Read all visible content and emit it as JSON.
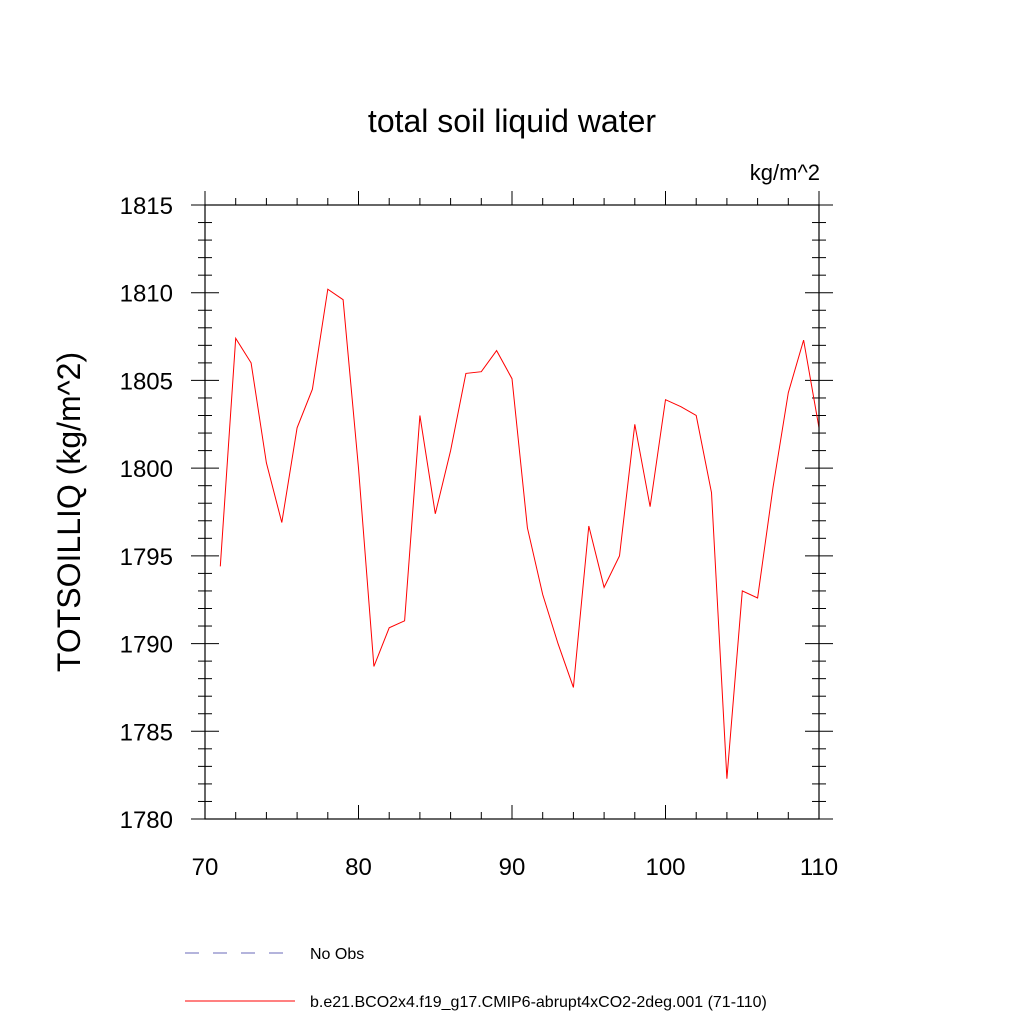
{
  "chart_data": {
    "type": "line",
    "title": "total soil liquid water",
    "units_label": "kg/m^2",
    "xlabel": "",
    "ylabel": "TOTSOILLIQ  (kg/m^2)",
    "xlim": [
      70,
      110
    ],
    "ylim": [
      1780,
      1815
    ],
    "xticks": [
      70,
      80,
      90,
      100,
      110
    ],
    "yticks": [
      1780,
      1785,
      1790,
      1795,
      1800,
      1805,
      1810,
      1815
    ],
    "grid": false,
    "series": [
      {
        "name": "b.e21.BCO2x4.f19_g17.CMIP6-abrupt4xCO2-2deg.001 (71-110)",
        "color": "#ff0000",
        "dash": "solid",
        "x": [
          71,
          72,
          73,
          74,
          75,
          76,
          77,
          78,
          79,
          80,
          81,
          82,
          83,
          84,
          85,
          86,
          87,
          88,
          89,
          90,
          91,
          92,
          93,
          94,
          95,
          96,
          97,
          98,
          99,
          100,
          101,
          102,
          103,
          104,
          105,
          106,
          107,
          108,
          109,
          110
        ],
        "y": [
          1794.4,
          1807.4,
          1806.0,
          1800.3,
          1796.9,
          1802.3,
          1804.5,
          1810.2,
          1809.6,
          1800.0,
          1788.7,
          1790.9,
          1791.3,
          1803.0,
          1797.4,
          1801.0,
          1805.4,
          1805.5,
          1806.7,
          1805.1,
          1796.6,
          1792.8,
          1790.0,
          1787.5,
          1796.7,
          1793.2,
          1795.0,
          1802.5,
          1797.8,
          1803.9,
          1803.5,
          1803.0,
          1798.6,
          1782.3,
          1793.0,
          1792.6,
          1798.9,
          1804.3,
          1807.3,
          1802.3
        ]
      }
    ],
    "legend": [
      {
        "label": "No Obs",
        "color": "#6a6ab8",
        "dash": "dashed"
      },
      {
        "label": "b.e21.BCO2x4.f19_g17.CMIP6-abrupt4xCO2-2deg.001 (71-110)",
        "color": "#ff0000",
        "dash": "solid"
      }
    ]
  }
}
